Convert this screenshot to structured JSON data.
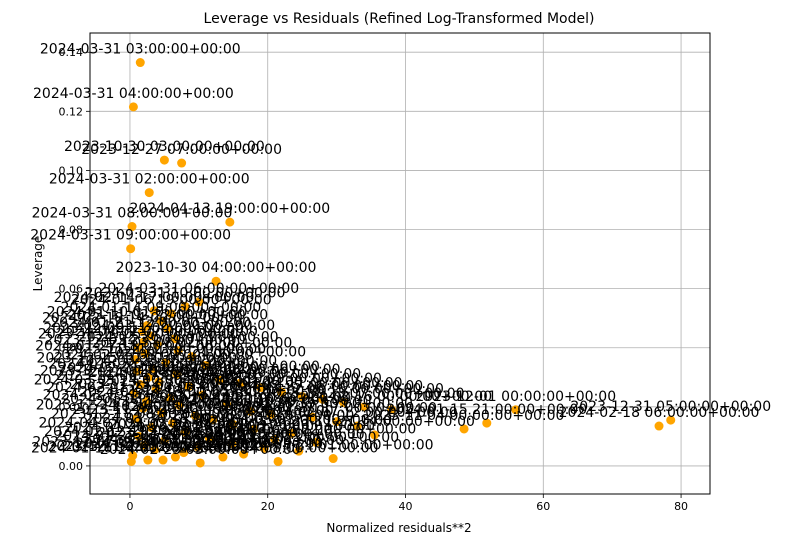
{
  "chart_data": {
    "type": "scatter",
    "title": "Leverage vs Residuals (Refined Log-Transformed Model)",
    "xlabel": "Normalized residuals**2",
    "ylabel": "Leverage",
    "xlim": [
      -5.8,
      84.2
    ],
    "ylim": [
      -0.0095,
      0.1465
    ],
    "xticks": [
      0,
      20,
      40,
      60,
      80
    ],
    "xtick_labels": [
      "0",
      "20",
      "40",
      "60",
      "80"
    ],
    "yticks": [
      0.0,
      0.02,
      0.04,
      0.06,
      0.08,
      0.1,
      0.12,
      0.14
    ],
    "ytick_labels": [
      "0.00",
      "0.02",
      "0.04",
      "0.06",
      "0.08",
      "0.10",
      "0.12",
      "0.14"
    ],
    "grid": true,
    "marker_color": "#FFA500",
    "points": [
      {
        "x": 1.5,
        "y": 0.1365,
        "label": "2024-03-31 03:00:00+00:00"
      },
      {
        "x": 0.5,
        "y": 0.1215,
        "label": "2024-03-31 04:00:00+00:00"
      },
      {
        "x": 5.0,
        "y": 0.1035,
        "label": "2023-10-30 03:00:00+00:00"
      },
      {
        "x": 7.5,
        "y": 0.1025,
        "label": "2023-12-27 07:00:00+00:00"
      },
      {
        "x": 2.8,
        "y": 0.0925,
        "label": "2024-03-31 02:00:00+00:00"
      },
      {
        "x": 14.5,
        "y": 0.0825,
        "label": "2024-04-13 19:00:00+00:00"
      },
      {
        "x": 0.3,
        "y": 0.081,
        "label": "2024-03-31 08:00:00+00:00"
      },
      {
        "x": 0.1,
        "y": 0.0735,
        "label": "2024-03-31 09:00:00+00:00"
      },
      {
        "x": 12.5,
        "y": 0.0625,
        "label": "2023-10-30 04:00:00+00:00"
      },
      {
        "x": 10.0,
        "y": 0.0555,
        "label": "2024-03-31 06:00:00+00:00"
      },
      {
        "x": 8.0,
        "y": 0.054,
        "label": "2024-03-31 10:00:00+00:00"
      },
      {
        "x": 3.5,
        "y": 0.0525,
        "label": "2024-02-14 17:00:00+00:00"
      },
      {
        "x": 6.0,
        "y": 0.0515,
        "label": "2024-01-06 19:00:00+00:00"
      },
      {
        "x": 4.5,
        "y": 0.049,
        "label": "2024-01-14 09:00:00+00:00"
      },
      {
        "x": 2.5,
        "y": 0.0475,
        "label": "2024-01-10 01:00:00+00:00"
      },
      {
        "x": 5.5,
        "y": 0.0465,
        "label": "2023-11-02 22:00:00+00:00"
      },
      {
        "x": 1.8,
        "y": 0.0455,
        "label": "2024-02-18 14:00:00+00:00"
      },
      {
        "x": 3.0,
        "y": 0.044,
        "label": "2024-01-21 12:00:00+00:00"
      },
      {
        "x": 6.5,
        "y": 0.043,
        "label": "2024-03-17 20:00:00+00:00"
      },
      {
        "x": 2.0,
        "y": 0.042,
        "label": "2023-12-09 11:00:00+00:00"
      },
      {
        "x": 4.0,
        "y": 0.041,
        "label": "2024-04-02 07:00:00+00:00"
      },
      {
        "x": 1.2,
        "y": 0.04,
        "label": "2023-11-19 05:00:00+00:00"
      },
      {
        "x": 7.0,
        "y": 0.039,
        "label": "2024-02-26 16:00:00+00:00"
      },
      {
        "x": 2.2,
        "y": 0.038,
        "label": "2023-12-03 23:00:00+00:00"
      },
      {
        "x": 9.0,
        "y": 0.037,
        "label": "2024-03-08 02:00:00+00:00"
      },
      {
        "x": 0.8,
        "y": 0.036,
        "label": "2024-01-27 18:00:00+00:00"
      },
      {
        "x": 5.2,
        "y": 0.035,
        "label": "2023-11-11 13:00:00+00:00"
      },
      {
        "x": 11.0,
        "y": 0.034,
        "label": "2024-04-06 21:00:00+00:00"
      },
      {
        "x": 3.3,
        "y": 0.033,
        "label": "2024-02-05 08:00:00+00:00"
      },
      {
        "x": 1.0,
        "y": 0.032,
        "label": "2023-12-15 10:00:00+00:00"
      },
      {
        "x": 6.8,
        "y": 0.031,
        "label": "2024-03-23 15:00:00+00:00"
      },
      {
        "x": 2.7,
        "y": 0.03,
        "label": "2024-01-02 04:00:00+00:00"
      },
      {
        "x": 13.0,
        "y": 0.029,
        "label": "2023-11-27 19:00:00+00:00"
      },
      {
        "x": 4.2,
        "y": 0.0285,
        "label": "2024-02-21 06:00:00+00:00"
      },
      {
        "x": 16.0,
        "y": 0.028,
        "label": "2024-03-12 12:00:00+00:00"
      },
      {
        "x": 1.5,
        "y": 0.0275,
        "label": "2023-12-21 01:00:00+00:00"
      },
      {
        "x": 8.5,
        "y": 0.027,
        "label": "2024-01-18 22:00:00+00:00"
      },
      {
        "x": 19.0,
        "y": 0.0265,
        "label": "2024-04-09 03:00:00+00:00"
      },
      {
        "x": 3.8,
        "y": 0.026,
        "label": "2023-11-06 17:00:00+00:00"
      },
      {
        "x": 22.0,
        "y": 0.025,
        "label": "2024-02-10 09:00:00+00:00"
      },
      {
        "x": 0.6,
        "y": 0.0245,
        "label": "2024-03-03 14:00:00+00:00"
      },
      {
        "x": 10.5,
        "y": 0.024,
        "label": "2023-12-30 20:00:00+00:00"
      },
      {
        "x": 25.0,
        "y": 0.0235,
        "label": "2024-01-24 11:00:00+00:00"
      },
      {
        "x": 5.8,
        "y": 0.023,
        "label": "2023-11-15 02:00:00+00:00"
      },
      {
        "x": 28.0,
        "y": 0.0225,
        "label": "2024-03-27 08:00:00+00:00"
      },
      {
        "x": 2.4,
        "y": 0.022,
        "label": "2024-02-01 23:00:00+00:00"
      },
      {
        "x": 31.0,
        "y": 0.0215,
        "label": "2023-12-06 16:00:00+00:00"
      },
      {
        "x": 14.0,
        "y": 0.021,
        "label": "2024-04-15 05:00:00+00:00"
      },
      {
        "x": 7.2,
        "y": 0.0205,
        "label": "2024-01-12 13:00:00+00:00"
      },
      {
        "x": 34.0,
        "y": 0.02,
        "label": "2023-11-23 07:00:00+00:00"
      },
      {
        "x": 1.9,
        "y": 0.0195,
        "label": "2024-03-19 18:00:00+00:00"
      },
      {
        "x": 38.0,
        "y": 0.019,
        "label": "2024-02-16 00:00:00+00:00"
      },
      {
        "x": 17.5,
        "y": 0.0185,
        "label": "2023-12-12 21:00:00+00:00"
      },
      {
        "x": 4.6,
        "y": 0.018,
        "label": "2024-01-08 15:00:00+00:00"
      },
      {
        "x": 20.5,
        "y": 0.0175,
        "label": "2024-04-03 10:00:00+00:00"
      },
      {
        "x": 9.5,
        "y": 0.017,
        "label": "2023-11-30 04:00:00+00:00"
      },
      {
        "x": 26.5,
        "y": 0.0165,
        "label": "2024-02-28 19:00:00+00:00"
      },
      {
        "x": 0.9,
        "y": 0.016,
        "label": "2023-12-24 13:00:00+00:00"
      },
      {
        "x": 12.0,
        "y": 0.0155,
        "label": "2024-03-14 06:00:00+00:00"
      },
      {
        "x": 30.0,
        "y": 0.015,
        "label": "2024-01-30 17:00:00+00:00"
      },
      {
        "x": 6.2,
        "y": 0.0145,
        "label": "2023-11-09 20:00:00+00:00"
      },
      {
        "x": 15.0,
        "y": 0.014,
        "label": "2024-04-11 01:00:00+00:00"
      },
      {
        "x": 33.0,
        "y": 0.0135,
        "label": "2024-02-07 12:00:00+00:00"
      },
      {
        "x": 3.1,
        "y": 0.013,
        "label": "2023-12-18 08:00:00+00:00"
      },
      {
        "x": 18.0,
        "y": 0.0125,
        "label": "2024-03-06 23:00:00+00:00"
      },
      {
        "x": 48.5,
        "y": 0.0125,
        "label": "2023-11-04 00:00:00+00:00"
      },
      {
        "x": 51.8,
        "y": 0.0145,
        "label": "2024-01-15 21:00:00+00:00"
      },
      {
        "x": 56.0,
        "y": 0.019,
        "label": "2023-12-01 00:00:00+00:00"
      },
      {
        "x": 76.8,
        "y": 0.0135,
        "label": "2024-02-18 06:00:00+00:00"
      },
      {
        "x": 78.5,
        "y": 0.0155,
        "label": "2023-12-31 05:00:00+00:00"
      },
      {
        "x": 8.0,
        "y": 0.0115,
        "label": "2024-03-30 18:00:00+00:00"
      },
      {
        "x": 23.5,
        "y": 0.011,
        "label": "2024-01-05 03:00:00+00:00"
      },
      {
        "x": 35.5,
        "y": 0.0105,
        "label": "2023-11-21 14:00:00+00:00"
      },
      {
        "x": 1.3,
        "y": 0.01,
        "label": "2024-04-07 09:00:00+00:00"
      },
      {
        "x": 11.5,
        "y": 0.0095,
        "label": "2024-02-23 04:00:00+00:00"
      },
      {
        "x": 21.0,
        "y": 0.009,
        "label": "2023-12-10 17:00:00+00:00"
      },
      {
        "x": 5.0,
        "y": 0.0085,
        "label": "2024-01-20 10:00:00+00:00"
      },
      {
        "x": 27.0,
        "y": 0.008,
        "label": "2024-03-25 22:00:00+00:00"
      },
      {
        "x": 14.8,
        "y": 0.0075,
        "label": "2023-11-13 06:00:00+00:00"
      },
      {
        "x": 2.1,
        "y": 0.007,
        "label": "2024-02-12 19:00:00+00:00"
      },
      {
        "x": 9.8,
        "y": 0.0065,
        "label": "2023-12-26 02:00:00+00:00"
      },
      {
        "x": 19.5,
        "y": 0.006,
        "label": "2024-04-01 15:00:00+00:00"
      },
      {
        "x": 3.6,
        "y": 0.0055,
        "label": "2024-01-28 07:00:00+00:00"
      },
      {
        "x": 24.5,
        "y": 0.005,
        "label": "2023-11-17 23:00:00+00:00"
      },
      {
        "x": 7.8,
        "y": 0.0045,
        "label": "2024-03-10 11:00:00+00:00"
      },
      {
        "x": 16.5,
        "y": 0.004,
        "label": "2024-02-03 16:00:00+00:00"
      },
      {
        "x": 0.4,
        "y": 0.0035,
        "label": "2023-12-07 05:00:00+00:00"
      },
      {
        "x": 13.5,
        "y": 0.003,
        "label": "2024-01-11 20:00:00+00:00"
      },
      {
        "x": 29.5,
        "y": 0.0025,
        "label": "2024-03-21 01:00:00+00:00"
      },
      {
        "x": 4.8,
        "y": 0.002,
        "label": "2023-11-25 12:00:00+00:00"
      },
      {
        "x": 21.5,
        "y": 0.0015,
        "label": "2024-04-14 08:00:00+00:00"
      },
      {
        "x": 10.2,
        "y": 0.001,
        "label": "2024-02-25 03:00:00+00:00"
      },
      {
        "x": 6.6,
        "y": 0.003,
        "label": "2024-03-30 13:00:00+00:00"
      },
      {
        "x": 2.6,
        "y": 0.002,
        "label": "2023-12-19 22:00:00+00:00"
      },
      {
        "x": 0.2,
        "y": 0.0015,
        "label": "2024-01-16 14:00:00+00:00"
      }
    ]
  }
}
